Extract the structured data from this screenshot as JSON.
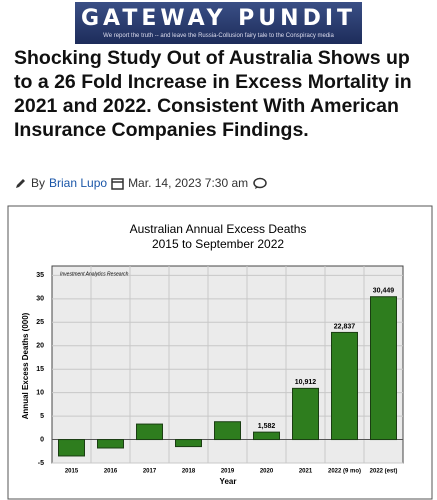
{
  "header": {
    "logo": "GATEWAY PUNDIT",
    "tagline": "We report the truth -- and leave the Russia-Collusion fairy tale to the Conspiracy media"
  },
  "article": {
    "headline": "Shocking Study Out of Australia Shows up to a 26 Fold Increase in Excess Mortality in 2021 and 2022. Consistent With American Insurance Companies Findings.",
    "byline_prefix": "By",
    "author": "Brian Lupo",
    "date": "Mar. 14, 2023 7:30 am"
  },
  "chart_data": {
    "type": "bar",
    "title": "Australian Annual Excess Deaths",
    "subtitle": "2015 to September 2022",
    "source": "Investment Analytics Research",
    "y_label": "Annual Excess Deaths (000)",
    "x_label": "Year",
    "categories": [
      "2015",
      "2016",
      "2017",
      "2018",
      "2019",
      "2020",
      "2021",
      "2022 (9 mo)",
      "2022 (est)"
    ],
    "values": [
      -3.5,
      -1.8,
      3.3,
      -1.5,
      3.8,
      1.582,
      10.912,
      22.837,
      30.449
    ],
    "value_labels": [
      null,
      null,
      null,
      null,
      null,
      "1,582",
      "10,912",
      "22,837",
      "30,449"
    ],
    "color": "#2e7d1e",
    "ylim": [
      -5,
      37
    ],
    "yticks": [
      -5,
      0,
      5,
      10,
      15,
      20,
      25,
      30,
      35
    ],
    "grid": true
  }
}
